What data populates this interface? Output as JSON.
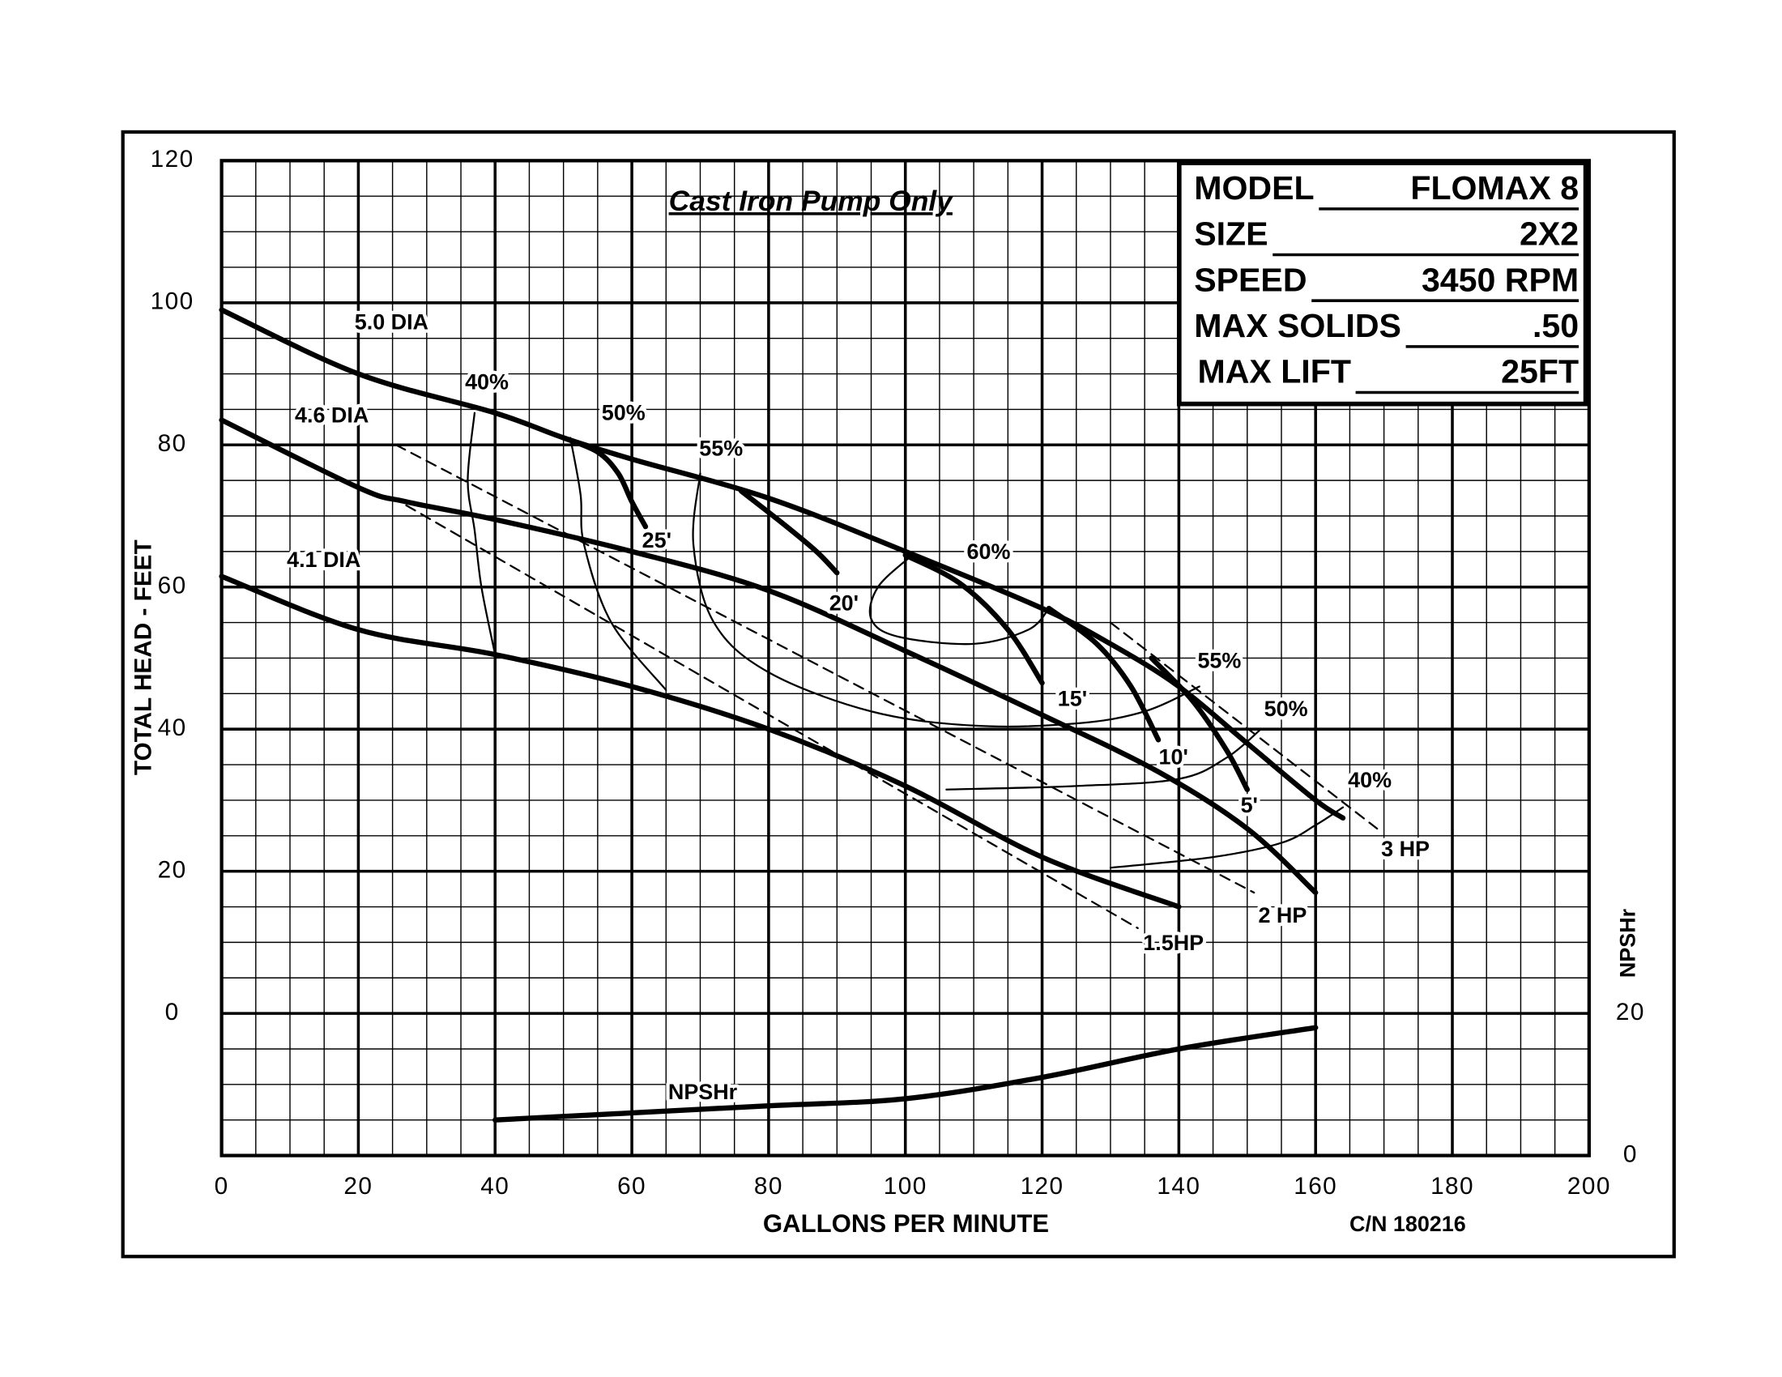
{
  "chart_data": {
    "type": "line",
    "title": "Cast Iron Pump Only",
    "x_label": "GALLONS PER MINUTE",
    "y_label": "TOTAL HEAD - FEET",
    "y2_label": "NPSHr",
    "note": "C/N 180216",
    "xlim": [
      0,
      200
    ],
    "xticks": [
      0,
      20,
      40,
      60,
      80,
      100,
      120,
      140,
      160,
      180,
      200
    ],
    "ylim": [
      -20,
      120
    ],
    "yticks": [
      0,
      20,
      40,
      60,
      80,
      100,
      120
    ],
    "y2lim": [
      0,
      140
    ],
    "y2ticks": [
      0,
      20
    ],
    "grid": true,
    "info": [
      {
        "label": "MODEL",
        "value": "FLOMAX 8"
      },
      {
        "label": "SIZE",
        "value": "2X2"
      },
      {
        "label": "SPEED",
        "value": "3450 RPM"
      },
      {
        "label": "MAX SOLIDS",
        "value": ".50"
      },
      {
        "label": "MAX LIFT",
        "value": "25FT"
      }
    ],
    "series": [
      {
        "name": "5.0 DIA",
        "color": "#000000",
        "style": "thick",
        "x": [
          0,
          20,
          40,
          50,
          60,
          80,
          100,
          120,
          130,
          140,
          150,
          160,
          164
        ],
        "values": [
          99,
          90,
          84.5,
          81,
          78,
          72.5,
          65,
          57,
          52,
          46,
          38,
          30,
          27.5
        ]
      },
      {
        "name": "4.6 DIA",
        "color": "#000000",
        "style": "thick",
        "x": [
          0,
          20,
          27,
          40,
          60,
          80,
          100,
          120,
          137,
          150,
          160
        ],
        "values": [
          83.5,
          74,
          72,
          69.5,
          65,
          59.5,
          51,
          42,
          34,
          26,
          17
        ]
      },
      {
        "name": "4.1 DIA",
        "color": "#000000",
        "style": "thick",
        "x": [
          0,
          20,
          40,
          60,
          80,
          100,
          120,
          140
        ],
        "values": [
          61.5,
          54,
          50.5,
          46,
          40,
          32,
          22,
          15
        ]
      },
      {
        "name": "40%",
        "color": "#000000",
        "style": "thin",
        "x": [
          37,
          36,
          37,
          38,
          40,
          null,
          130,
          145,
          155,
          160,
          164
        ],
        "values": [
          84.5,
          75,
          68,
          60,
          50.5,
          null,
          20.5,
          22,
          24,
          26.5,
          29
        ]
      },
      {
        "name": "50%",
        "color": "#000000",
        "style": "thin",
        "x": [
          51,
          52.5,
          53,
          57,
          65,
          null,
          106,
          125,
          140,
          147,
          152
        ],
        "values": [
          81,
          73,
          66,
          55,
          45.5,
          null,
          31.5,
          32,
          33,
          36,
          40
        ]
      },
      {
        "name": "55%",
        "color": "#000000",
        "style": "thin",
        "x": [
          70,
          69,
          72,
          80,
          95,
          110,
          125,
          135,
          143
        ],
        "values": [
          76,
          66,
          55,
          48,
          42.5,
          40.5,
          40.8,
          42.5,
          46
        ]
      },
      {
        "name": "60%",
        "color": "#000000",
        "style": "thin",
        "x": [
          101,
          96,
          95,
          99,
          110,
          118,
          121
        ],
        "values": [
          64.5,
          60,
          55.5,
          53,
          52,
          54,
          57
        ]
      },
      {
        "name": "25'",
        "color": "#000000",
        "style": "thick",
        "x": [
          50,
          55,
          58,
          60,
          62
        ],
        "values": [
          81,
          79,
          76,
          72,
          68.5
        ]
      },
      {
        "name": "20'",
        "color": "#000000",
        "style": "thick",
        "x": [
          76,
          82,
          87,
          90
        ],
        "values": [
          73.5,
          69,
          65,
          62
        ]
      },
      {
        "name": "15'",
        "color": "#000000",
        "style": "thick",
        "x": [
          100,
          108,
          115,
          120
        ],
        "values": [
          64.5,
          60.5,
          54,
          46.5
        ]
      },
      {
        "name": "10'",
        "color": "#000000",
        "style": "thick",
        "x": [
          121,
          128,
          133,
          137
        ],
        "values": [
          57,
          52,
          46,
          38.5
        ]
      },
      {
        "name": "5'",
        "color": "#000000",
        "style": "thick",
        "x": [
          136,
          142,
          147,
          150
        ],
        "values": [
          50,
          44,
          37,
          31.5
        ]
      },
      {
        "name": "3 HP",
        "color": "#000000",
        "style": "dashed",
        "x": [
          130,
          169
        ],
        "values": [
          55,
          26
        ]
      },
      {
        "name": "2 HP",
        "color": "#000000",
        "style": "dashed",
        "x": [
          25.5,
          151
        ],
        "values": [
          80,
          17
        ]
      },
      {
        "name": "1.5HP",
        "color": "#000000",
        "style": "dashed",
        "x": [
          27,
          134
        ],
        "values": [
          71.5,
          12
        ]
      },
      {
        "name": "NPSHr",
        "color": "#000000",
        "style": "thick",
        "axis": "y2",
        "x": [
          40,
          60,
          80,
          100,
          120,
          140,
          160
        ],
        "values": [
          5,
          6,
          7,
          8,
          11,
          15,
          18
        ]
      }
    ]
  }
}
